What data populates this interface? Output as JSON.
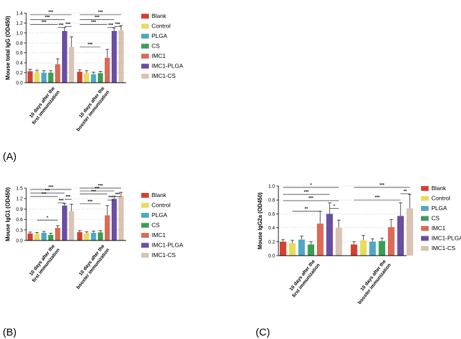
{
  "panel_labels": [
    "(A)",
    "(B)",
    "(C)"
  ],
  "colors": {
    "Blank": "#d4412f",
    "Control": "#e7dc5c",
    "PLGA": "#4fa8c4",
    "CS": "#3c9e55",
    "IMC1": "#dc6a55",
    "IMC1-PLGA": "#6a4ea2",
    "IMC1-CS": "#d9c3b3"
  },
  "chart_data": [
    {
      "id": "A",
      "type": "bar",
      "ylabel": "Mouse total IgG (OD450)",
      "ylim": [
        0,
        1.4
      ],
      "yticks": [
        "0.0",
        "0.2",
        "0.4",
        "0.6",
        "0.8",
        "1.0",
        "1.2",
        "1.4"
      ],
      "categories": [
        [
          "10 days after the",
          "first immunization"
        ],
        [
          "10 days after the",
          "booster immunization"
        ]
      ],
      "legend": [
        "Blank",
        "Control",
        "PLGA",
        "CS",
        "IMC1",
        "IMC1-PLGA",
        "IMC1-CS"
      ],
      "series": [
        {
          "name": "Blank",
          "values": [
            0.23,
            0.22
          ],
          "err": [
            0.04,
            0.04
          ]
        },
        {
          "name": "Control",
          "values": [
            0.21,
            0.2
          ],
          "err": [
            0.04,
            0.04
          ]
        },
        {
          "name": "PLGA",
          "values": [
            0.2,
            0.17
          ],
          "err": [
            0.04,
            0.04
          ]
        },
        {
          "name": "CS",
          "values": [
            0.2,
            0.19
          ],
          "err": [
            0.04,
            0.04
          ]
        },
        {
          "name": "IMC1",
          "values": [
            0.37,
            0.5
          ],
          "err": [
            0.11,
            0.17
          ]
        },
        {
          "name": "IMC1-PLGA",
          "values": [
            1.04,
            1.04
          ],
          "err": [
            0.07,
            0.06
          ]
        },
        {
          "name": "IMC1-CS",
          "values": [
            0.72,
            1.05
          ],
          "err": [
            0.2,
            0.1
          ]
        }
      ],
      "significance": [
        {
          "group": 0,
          "from": 0,
          "to": 6,
          "level": 1.37,
          "label": "***"
        },
        {
          "group": 0,
          "from": 0,
          "to": 5,
          "level": 1.27,
          "label": "***"
        },
        {
          "group": 0,
          "from": 0,
          "to": 4,
          "level": 1.17,
          "label": "***"
        },
        {
          "group": 0,
          "from": 4,
          "to": 5,
          "level": 1.11,
          "label": "***"
        },
        {
          "group": 0,
          "from": 5,
          "to": 6,
          "level": 1.13,
          "label": "***"
        },
        {
          "group": 1,
          "from": 0,
          "to": 6,
          "level": 1.37,
          "label": "***"
        },
        {
          "group": 1,
          "from": 0,
          "to": 5,
          "level": 1.27,
          "label": "***"
        },
        {
          "group": 1,
          "from": 0,
          "to": 4,
          "level": 1.17,
          "label": "***"
        },
        {
          "group": 1,
          "from": 4,
          "to": 5,
          "level": 1.11,
          "label": "***"
        },
        {
          "group": 1,
          "from": 5,
          "to": 6,
          "level": 1.13,
          "label": "***"
        },
        {
          "group": 1,
          "from": 0,
          "to": 3,
          "level": 0.72,
          "label": "***"
        }
      ]
    },
    {
      "id": "B",
      "type": "bar",
      "ylabel": "Mouse IgG1 (OD450)",
      "ylim": [
        0,
        1.5
      ],
      "yticks": [
        "0.0",
        "0.3",
        "0.6",
        "0.9",
        "1.2",
        "1.5"
      ],
      "categories": [
        [
          "10 days after the",
          "first immunization"
        ],
        [
          "10 days after the",
          "booster immunization"
        ]
      ],
      "legend": [
        "Blank",
        "Control",
        "PLGA",
        "CS",
        "IMC1",
        "IMC1-PLGA",
        "IMC1-CS"
      ],
      "series": [
        {
          "name": "Blank",
          "values": [
            0.2,
            0.24
          ],
          "err": [
            0.04,
            0.04
          ]
        },
        {
          "name": "Control",
          "values": [
            0.19,
            0.21
          ],
          "err": [
            0.04,
            0.04
          ]
        },
        {
          "name": "PLGA",
          "values": [
            0.22,
            0.22
          ],
          "err": [
            0.04,
            0.05
          ]
        },
        {
          "name": "CS",
          "values": [
            0.16,
            0.23
          ],
          "err": [
            0.05,
            0.05
          ]
        },
        {
          "name": "IMC1",
          "values": [
            0.36,
            0.72
          ],
          "err": [
            0.06,
            0.28
          ]
        },
        {
          "name": "IMC1-PLGA",
          "values": [
            1.0,
            1.19
          ],
          "err": [
            0.06,
            0.08
          ]
        },
        {
          "name": "IMC1-CS",
          "values": [
            0.84,
            1.28
          ],
          "err": [
            0.2,
            0.1
          ]
        }
      ],
      "significance": [
        {
          "group": 0,
          "from": 0,
          "to": 6,
          "level": 1.46,
          "label": "***"
        },
        {
          "group": 0,
          "from": 0,
          "to": 5,
          "level": 1.36,
          "label": "***"
        },
        {
          "group": 0,
          "from": 0,
          "to": 4,
          "level": 1.26,
          "label": "***"
        },
        {
          "group": 0,
          "from": 5,
          "to": 6,
          "level": 1.18,
          "label": "***"
        },
        {
          "group": 0,
          "from": 4,
          "to": 5,
          "level": 1.08,
          "label": "***"
        },
        {
          "group": 0,
          "from": 1,
          "to": 4,
          "level": 0.58,
          "label": "*"
        },
        {
          "group": 1,
          "from": 0,
          "to": 6,
          "level": 1.5,
          "label": "***"
        },
        {
          "group": 1,
          "from": 0,
          "to": 5,
          "level": 1.42,
          "label": "***"
        },
        {
          "group": 1,
          "from": 0,
          "to": 4,
          "level": 1.33,
          "label": "***"
        },
        {
          "group": 1,
          "from": 5,
          "to": 6,
          "level": 1.25,
          "label": "***"
        },
        {
          "group": 1,
          "from": 4,
          "to": 5,
          "level": 1.16,
          "label": "***"
        },
        {
          "group": 1,
          "from": 0,
          "to": 3,
          "level": 1.05,
          "label": "***"
        }
      ]
    },
    {
      "id": "C",
      "type": "bar",
      "ylabel": "Mouse IgG2a (OD450)",
      "ylim": [
        0,
        1.0
      ],
      "yticks": [
        "0.0",
        "0.2",
        "0.4",
        "0.6",
        "0.8",
        "1.0"
      ],
      "categories": [
        [
          "10 days after the",
          "first immunization"
        ],
        [
          "10 days after the",
          "booster immunization"
        ]
      ],
      "legend": [
        "Blank",
        "Control",
        "PLGA",
        "CS",
        "IMC1",
        "IMC1-PLGA",
        "IMC1-CS"
      ],
      "series": [
        {
          "name": "Blank",
          "values": [
            0.2,
            0.16
          ],
          "err": [
            0.03,
            0.04
          ]
        },
        {
          "name": "Control",
          "values": [
            0.18,
            0.22
          ],
          "err": [
            0.04,
            0.07
          ]
        },
        {
          "name": "PLGA",
          "values": [
            0.23,
            0.2
          ],
          "err": [
            0.05,
            0.04
          ]
        },
        {
          "name": "CS",
          "values": [
            0.16,
            0.21
          ],
          "err": [
            0.04,
            0.04
          ]
        },
        {
          "name": "IMC1",
          "values": [
            0.46,
            0.41
          ],
          "err": [
            0.18,
            0.11
          ]
        },
        {
          "name": "IMC1-PLGA",
          "values": [
            0.6,
            0.57
          ],
          "err": [
            0.16,
            0.19
          ]
        },
        {
          "name": "IMC1-CS",
          "values": [
            0.4,
            0.68
          ],
          "err": [
            0.11,
            0.2
          ]
        }
      ],
      "significance": [
        {
          "group": 0,
          "from": 0,
          "to": 6,
          "level": 0.98,
          "label": "*"
        },
        {
          "group": 0,
          "from": 0,
          "to": 5,
          "level": 0.88,
          "label": "***"
        },
        {
          "group": 0,
          "from": 0,
          "to": 6,
          "level": 0.79,
          "label": "***"
        },
        {
          "group": 0,
          "from": 5,
          "to": 6,
          "level": 0.68,
          "label": "*"
        },
        {
          "group": 0,
          "from": 1,
          "to": 4,
          "level": 0.64,
          "label": "**"
        },
        {
          "group": 1,
          "from": 0,
          "to": 6,
          "level": 0.98,
          "label": "***"
        },
        {
          "group": 1,
          "from": 5,
          "to": 6,
          "level": 0.89,
          "label": "**"
        },
        {
          "group": 1,
          "from": 0,
          "to": 5,
          "level": 0.8,
          "label": "***"
        }
      ]
    }
  ]
}
